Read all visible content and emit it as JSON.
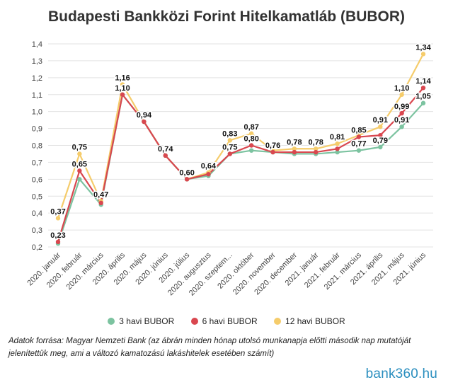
{
  "title": "Budapesti Bankközi Forint Hitelkamatláb (BUBOR)",
  "chart_data": {
    "type": "line",
    "title": "Budapesti Bankközi Forint Hitelkamatláb (BUBOR)",
    "categories": [
      "2020. január",
      "2020. február",
      "2020. március",
      "2020. április",
      "2020. május",
      "2020. június",
      "2020. július",
      "2020. augusztus",
      "2020. szeptem...",
      "2020. október",
      "2020. november",
      "2020. december",
      "2021. január",
      "2021. február",
      "2021. március",
      "2021. április",
      "2021. május",
      "2021. június"
    ],
    "y_ticks": [
      "0,2",
      "0,3",
      "0,4",
      "0,5",
      "0,6",
      "0,7",
      "0,8",
      "0,9",
      "1,0",
      "1,1",
      "1,2",
      "1,3",
      "1,4"
    ],
    "ylim": [
      0.2,
      1.4
    ],
    "grid": true,
    "legend_position": "bottom",
    "series": [
      {
        "name": "3 havi BUBOR",
        "color": "#7cc3a0",
        "values": [
          0.22,
          0.6,
          0.45,
          1.1,
          0.94,
          0.74,
          0.6,
          0.62,
          0.75,
          0.77,
          0.76,
          0.75,
          0.75,
          0.76,
          0.77,
          0.79,
          0.91,
          1.05
        ]
      },
      {
        "name": "6 havi BUBOR",
        "color": "#d9474f",
        "values": [
          0.23,
          0.65,
          0.46,
          1.1,
          0.94,
          0.74,
          0.6,
          0.63,
          0.75,
          0.8,
          0.76,
          0.76,
          0.76,
          0.78,
          0.85,
          0.86,
          0.99,
          1.14
        ]
      },
      {
        "name": "12 havi BUBOR",
        "color": "#f5cc6b",
        "values": [
          0.37,
          0.75,
          0.47,
          1.16,
          0.94,
          0.74,
          0.6,
          0.64,
          0.83,
          0.87,
          0.77,
          0.78,
          0.78,
          0.81,
          0.86,
          0.91,
          1.1,
          1.34
        ]
      }
    ],
    "data_labels": [
      {
        "index": 0,
        "text": "0,37"
      },
      {
        "index": 0,
        "text": "0,23"
      },
      {
        "index": 1,
        "text": "0,75"
      },
      {
        "index": 1,
        "text": "0,65"
      },
      {
        "index": 2,
        "text": "0,47"
      },
      {
        "index": 3,
        "text": "1,16"
      },
      {
        "index": 3,
        "text": "1,10"
      },
      {
        "index": 4,
        "text": "0,94"
      },
      {
        "index": 5,
        "text": "0,74"
      },
      {
        "index": 6,
        "text": "0,60"
      },
      {
        "index": 7,
        "text": "0,64"
      },
      {
        "index": 8,
        "text": "0,83"
      },
      {
        "index": 8,
        "text": "0,75"
      },
      {
        "index": 9,
        "text": "0,87"
      },
      {
        "index": 9,
        "text": "0,80"
      },
      {
        "index": 10,
        "text": "0,76"
      },
      {
        "index": 11,
        "text": "0,78"
      },
      {
        "index": 12,
        "text": "0,78"
      },
      {
        "index": 13,
        "text": "0,81"
      },
      {
        "index": 14,
        "text": "0,85"
      },
      {
        "index": 14,
        "text": "0,77"
      },
      {
        "index": 15,
        "text": "0,91"
      },
      {
        "index": 15,
        "text": "0,79"
      },
      {
        "index": 16,
        "text": "1,10"
      },
      {
        "index": 16,
        "text": "0,99"
      },
      {
        "index": 16,
        "text": "0,91"
      },
      {
        "index": 17,
        "text": "1,34"
      },
      {
        "index": 17,
        "text": "1,14"
      },
      {
        "index": 17,
        "text": "1,05"
      }
    ]
  },
  "legend": {
    "items": [
      {
        "label": "3 havi BUBOR",
        "color": "#7cc3a0"
      },
      {
        "label": "6 havi BUBOR",
        "color": "#d9474f"
      },
      {
        "label": "12 havi BUBOR",
        "color": "#f5cc6b"
      }
    ]
  },
  "source_note": "Adatok forrása: Magyar Nemzeti Bank (az ábrán minden hónap utolsó munkanapja előtti második nap mutatóját jelenítettük meg, ami a változó kamatozású lakáshitelek esetében számít)",
  "logo": {
    "part1": "bank3",
    "part2": "6",
    "part3": "0.hu"
  }
}
